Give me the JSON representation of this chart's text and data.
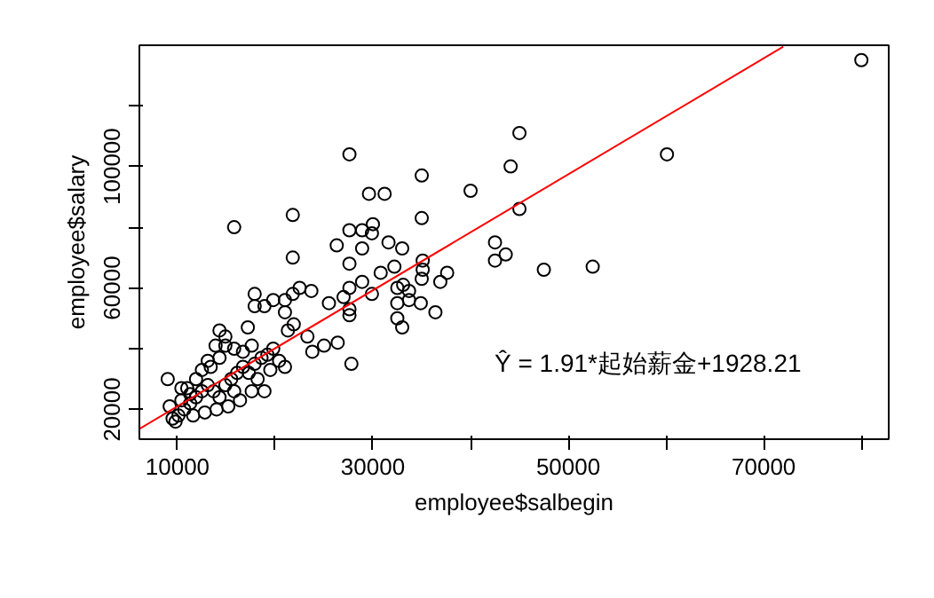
{
  "chart_data": {
    "type": "scatter",
    "xlabel": "employee$salbegin",
    "ylabel": "employee$salary",
    "xlim": [
      6100,
      82800
    ],
    "ylim": [
      10200,
      139900
    ],
    "xticks": [
      10000,
      {
        "value": 20000,
        "label": null
      },
      30000,
      {
        "value": 40000,
        "label": null
      },
      50000,
      {
        "value": 60000,
        "label": null
      },
      70000,
      {
        "value": 80000,
        "label": null
      }
    ],
    "yticks": [
      20000,
      {
        "value": 40000,
        "label": null
      },
      60000,
      {
        "value": 80000,
        "label": null
      },
      100000,
      {
        "value": 120000,
        "label": null
      }
    ],
    "grid": false,
    "annotations": [
      "Ŷ = 1.91*起始薪金+1928.21"
    ],
    "series": [
      {
        "color": "#000000",
        "marker": "circle",
        "x": [
          80000,
          45000,
          27600,
          60100,
          35000,
          44100,
          40000,
          29600,
          31200,
          45000,
          21800,
          35000,
          15800,
          27600,
          28900,
          29900,
          30000,
          26300,
          28900,
          27600,
          31600,
          33000,
          21800,
          42500,
          42500,
          43600,
          47500,
          52500,
          35100,
          35100,
          37600,
          36900,
          35000,
          32200,
          30800,
          28900,
          29900,
          32500,
          33700,
          33100,
          34900,
          36400,
          33700,
          32500,
          32500,
          33000,
          27600,
          27600,
          27600,
          27000,
          25500,
          23700,
          22500,
          21800,
          25000,
          26400,
          23800,
          27800,
          23300,
          21300,
          21000,
          17900,
          17900,
          19800,
          18900,
          17200,
          21000,
          21900,
          14300,
          14900,
          9000,
          9200,
          9500,
          9800,
          10100,
          10700,
          11300,
          11900,
          12500,
          13100,
          13700,
          14300,
          14900,
          15500,
          16100,
          16700,
          17300,
          17900,
          18600,
          19200,
          19800,
          20400,
          18900,
          17600,
          16400,
          15200,
          14000,
          12800,
          11600,
          10400,
          11000,
          11900,
          12500,
          13400,
          14300,
          14900,
          15800,
          16700,
          17600,
          13900,
          13100,
          18200,
          19500,
          21000,
          15800,
          10400,
          11300
        ],
        "values": [
          135000,
          111000,
          104000,
          104000,
          97000,
          100000,
          92000,
          91000,
          91000,
          86000,
          84000,
          83000,
          80000,
          79000,
          79000,
          78000,
          81000,
          74000,
          73000,
          68000,
          75000,
          73000,
          70000,
          75000,
          69000,
          71000,
          66000,
          67000,
          69000,
          66000,
          65000,
          62000,
          63000,
          67000,
          65000,
          62000,
          58000,
          60000,
          59000,
          61000,
          55000,
          52000,
          56000,
          55000,
          50000,
          47000,
          53000,
          51000,
          60000,
          57000,
          55000,
          59000,
          60000,
          58000,
          41000,
          42000,
          39000,
          35000,
          44000,
          46000,
          56000,
          58000,
          54000,
          56000,
          54000,
          47000,
          52000,
          48000,
          46000,
          44000,
          30000,
          21000,
          17000,
          16000,
          18000,
          20000,
          22000,
          24000,
          26000,
          28000,
          26000,
          24000,
          28000,
          30000,
          32000,
          34000,
          32000,
          35000,
          37000,
          38000,
          40000,
          36000,
          26000,
          26000,
          23000,
          21000,
          20000,
          19000,
          18000,
          23000,
          27000,
          30000,
          33000,
          34000,
          37000,
          41000,
          40000,
          39000,
          41000,
          41000,
          36000,
          30000,
          33000,
          34000,
          26000,
          27000,
          25000
        ]
      },
      {
        "type": "line",
        "color": "#ff0000",
        "x": [
          6100,
          72000
        ],
        "values": [
          13600,
          139400
        ]
      }
    ]
  }
}
